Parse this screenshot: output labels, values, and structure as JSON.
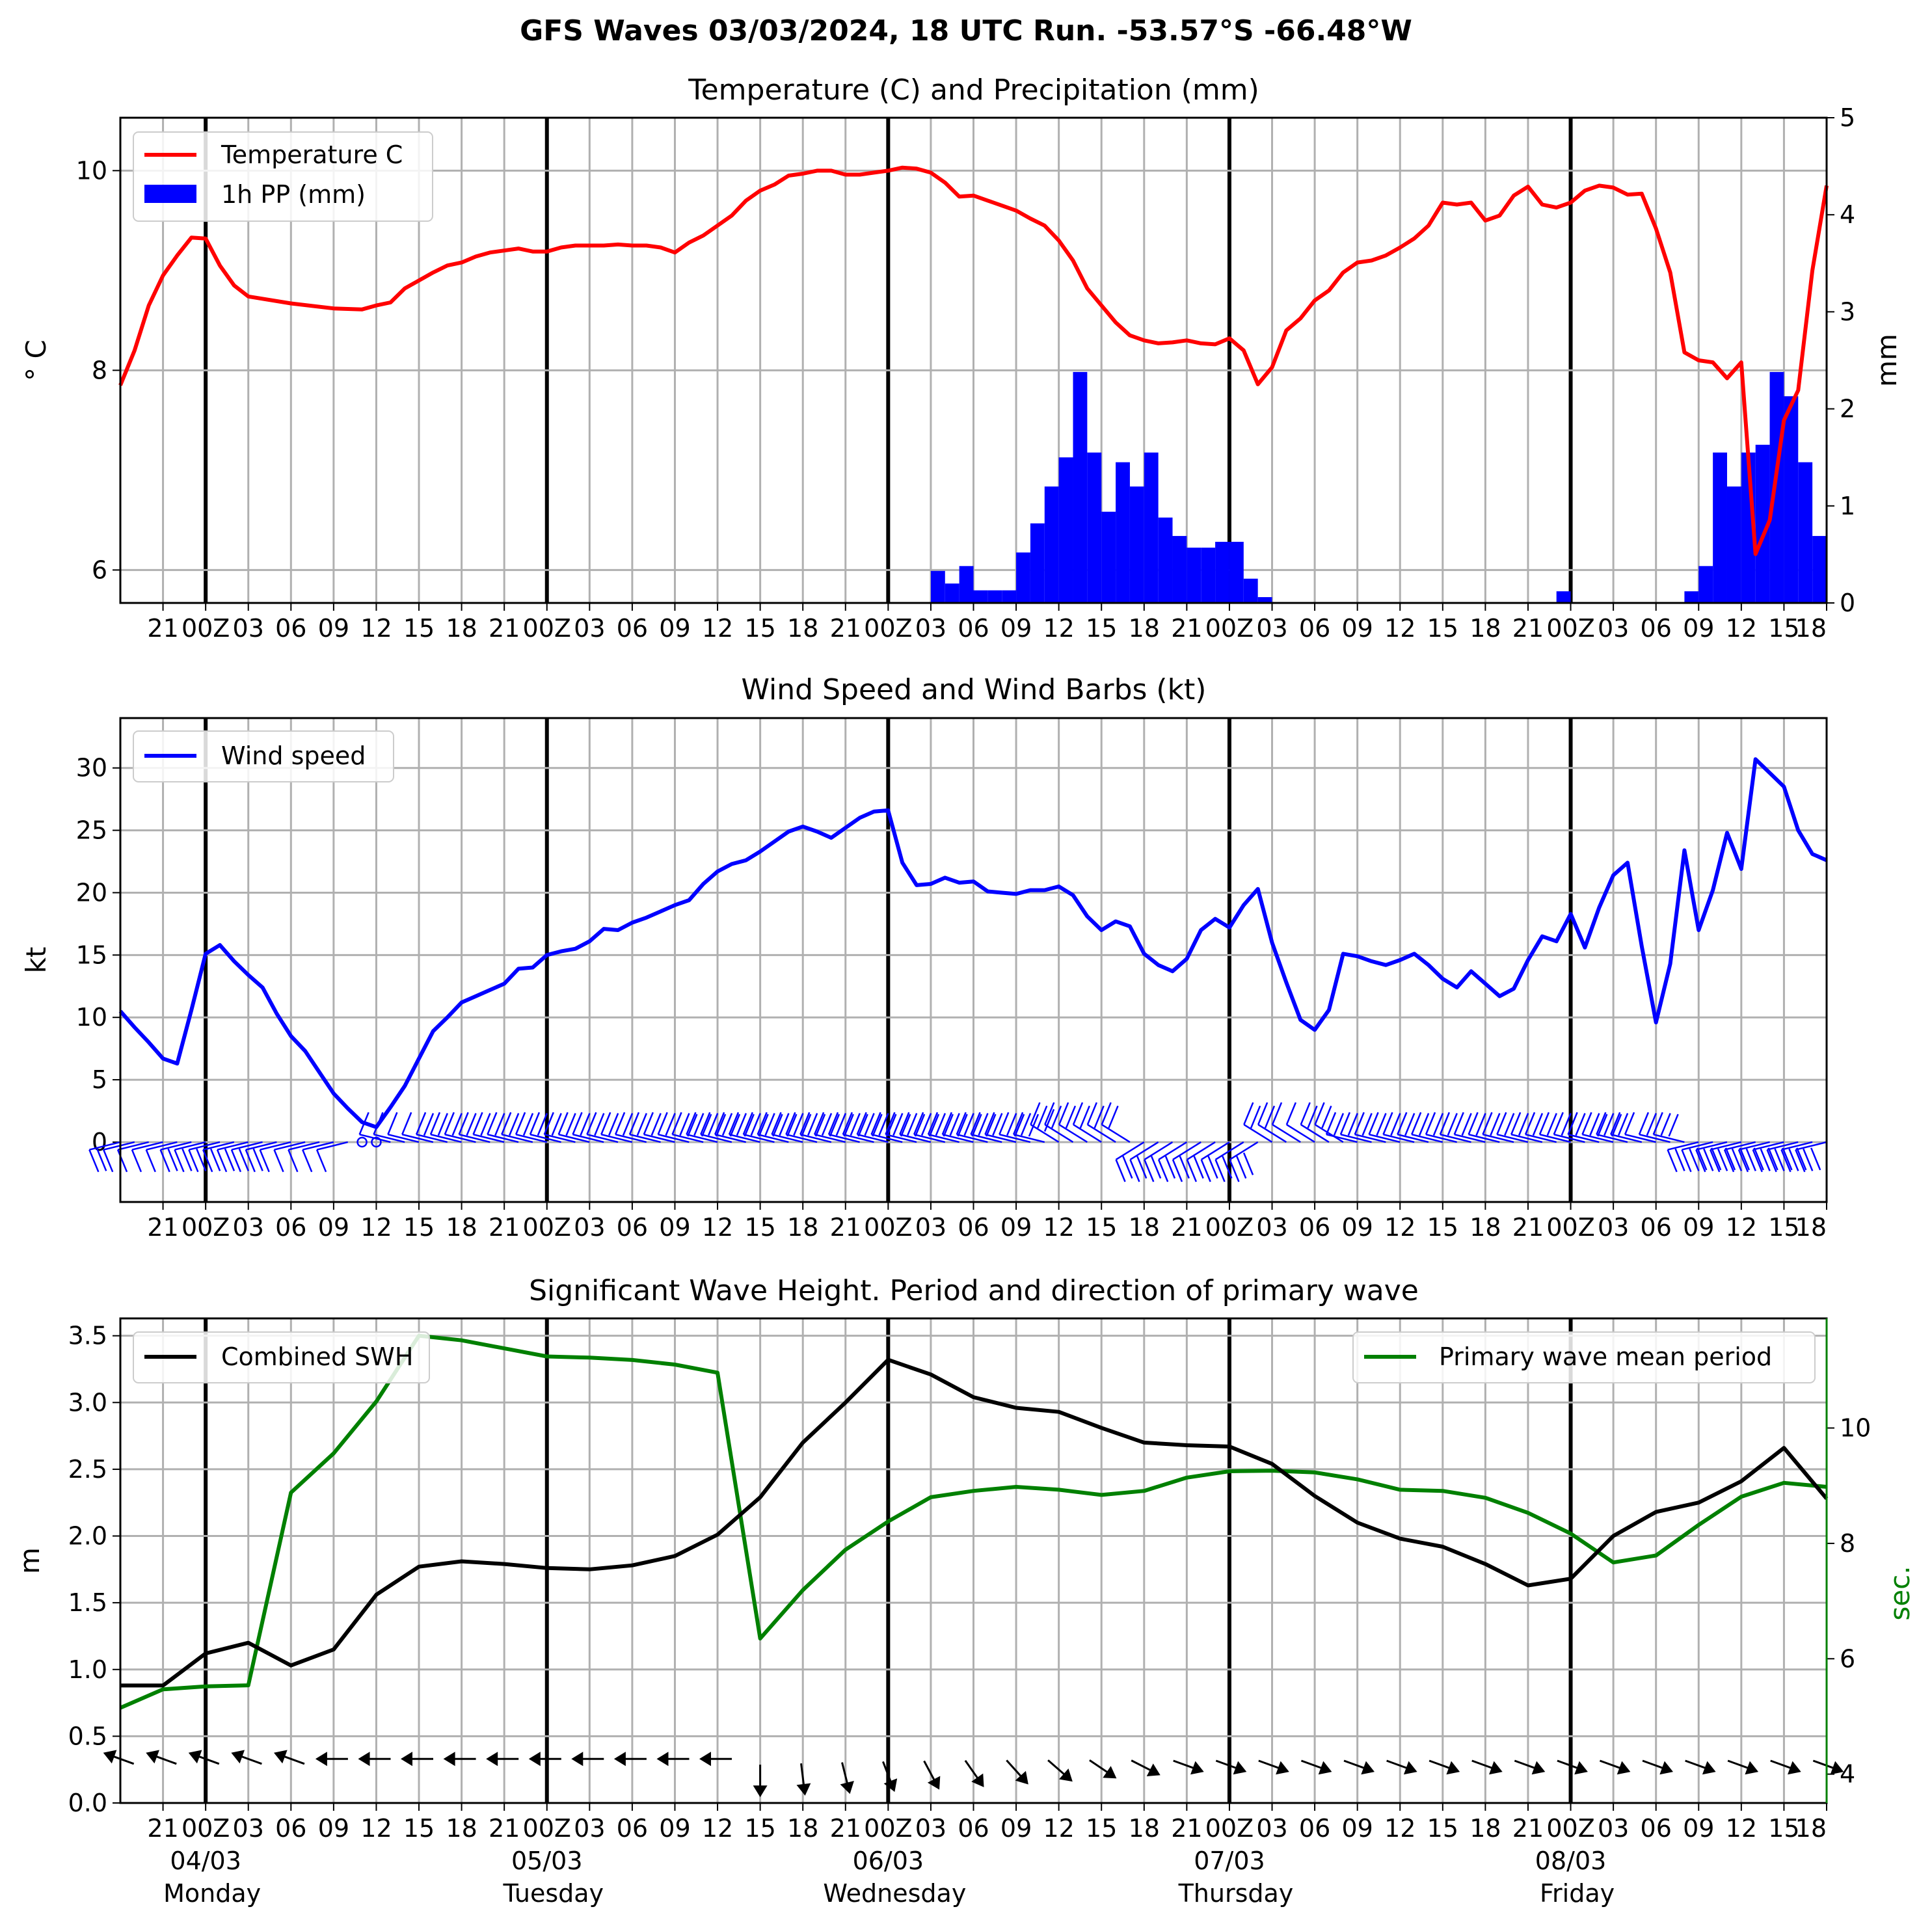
{
  "chart_data": [
    {
      "type": "line",
      "suptitle": "GFS Waves 03/03/2024, 18 UTC Run. -53.57°S -66.48°W",
      "title": "Temperature (C) and Precipitation (mm)",
      "ylabel": "$^\\circ$C",
      "ylabel_display": "° C",
      "y2label": "mm",
      "ylim": [
        5.67,
        10.53
      ],
      "y2lim": [
        0,
        5
      ],
      "yticks": [
        6,
        8,
        10
      ],
      "y2ticks": [
        0,
        1,
        2,
        3,
        4,
        5
      ],
      "xlim_hours": [
        0,
        120
      ],
      "xtick_labels": [
        "21",
        "00Z",
        "03",
        "06",
        "09",
        "12",
        "15",
        "18",
        "21",
        "00Z",
        "03",
        "06",
        "09",
        "12",
        "15",
        "18",
        "21",
        "00Z",
        "03",
        "06",
        "09",
        "12",
        "15",
        "18",
        "21",
        "00Z",
        "03",
        "06",
        "09",
        "12",
        "15",
        "18",
        "21",
        "00Z",
        "03",
        "06",
        "09",
        "12",
        "15",
        "18"
      ],
      "grid": true,
      "legend_position": "upper left",
      "series": [
        {
          "name": "Temperature C",
          "kind": "line",
          "color": "#ff0000",
          "x": [
            0,
            1,
            2,
            3,
            4,
            5,
            6,
            7,
            8,
            9,
            12,
            15,
            17,
            18,
            19,
            20,
            21,
            22,
            23,
            24,
            25,
            26,
            27,
            28,
            29,
            30,
            31,
            32,
            33,
            34,
            35,
            36,
            37,
            38,
            39,
            40,
            41,
            42,
            43,
            44,
            45,
            46,
            47,
            48,
            49,
            50,
            51,
            52,
            53,
            54,
            55,
            56,
            57,
            58,
            59,
            60,
            61,
            62,
            63,
            64,
            65,
            66,
            67,
            68,
            69,
            70,
            71,
            72,
            73,
            74,
            75,
            76,
            77,
            78,
            79,
            80,
            81,
            82,
            83,
            84,
            85,
            86,
            87,
            88,
            89,
            90,
            91,
            92,
            93,
            94,
            95,
            96,
            97,
            98,
            99,
            100,
            101,
            102,
            103,
            104,
            105,
            106,
            107,
            108,
            109,
            110,
            111,
            112,
            113,
            114,
            115,
            116,
            117,
            118,
            119,
            120
          ],
          "values": [
            7.85,
            8.2,
            8.65,
            8.95,
            9.15,
            9.33,
            9.32,
            9.05,
            8.85,
            8.74,
            8.67,
            8.62,
            8.61,
            8.65,
            8.68,
            8.82,
            8.9,
            8.98,
            9.05,
            9.08,
            9.14,
            9.18,
            9.2,
            9.22,
            9.19,
            9.19,
            9.23,
            9.25,
            9.25,
            9.25,
            9.26,
            9.25,
            9.25,
            9.23,
            9.18,
            9.28,
            9.35,
            9.45,
            9.55,
            9.7,
            9.8,
            9.86,
            9.95,
            9.97,
            10.0,
            10.0,
            9.96,
            9.96,
            9.98,
            10.0,
            10.03,
            10.02,
            9.98,
            9.88,
            9.74,
            9.75,
            9.7,
            9.65,
            9.6,
            9.52,
            9.45,
            9.3,
            9.1,
            8.82,
            8.65,
            8.48,
            8.35,
            8.3,
            8.27,
            8.28,
            8.3,
            8.27,
            8.26,
            8.32,
            8.2,
            7.86,
            8.03,
            8.4,
            8.52,
            8.7,
            8.8,
            8.98,
            9.08,
            9.1,
            9.15,
            9.23,
            9.32,
            9.45,
            9.68,
            9.66,
            9.68,
            9.5,
            9.55,
            9.75,
            9.84,
            9.66,
            9.63,
            9.68,
            9.8,
            9.85,
            9.83,
            9.76,
            9.77,
            9.42,
            8.98,
            8.18,
            8.1,
            8.08,
            7.92,
            8.08,
            6.16,
            6.5,
            7.5,
            7.8,
            9.0,
            9.85
          ]
        },
        {
          "name": "1h PP (mm)",
          "kind": "bar",
          "color": "#0000ff",
          "x": [
            58,
            59,
            60,
            61,
            62,
            63,
            64,
            65,
            66,
            67,
            68,
            69,
            70,
            71,
            72,
            73,
            74,
            75,
            76,
            77,
            78,
            79,
            80,
            81,
            102,
            111,
            112,
            113,
            114,
            115,
            116,
            117,
            118,
            119,
            120,
            121,
            122,
            123,
            124
          ],
          "values": [
            0.33,
            0.2,
            0.38,
            0.13,
            0.13,
            0.13,
            0.52,
            0.82,
            1.2,
            1.5,
            2.38,
            1.55,
            0.94,
            1.45,
            1.2,
            1.55,
            0.88,
            0.69,
            0.57,
            0.57,
            0.63,
            0.63,
            0.25,
            0.06,
            0.12,
            0.12,
            0.38,
            1.55,
            1.2,
            1.55,
            1.63,
            2.38,
            2.13,
            1.45,
            0.69,
            0.12,
            0,
            0,
            0
          ]
        }
      ]
    },
    {
      "type": "line",
      "title": "Wind Speed and Wind Barbs (kt)",
      "ylabel": "kt",
      "ylim": [
        -4.8,
        34
      ],
      "yticks": [
        0,
        5,
        10,
        15,
        20,
        25,
        30
      ],
      "xlim_hours": [
        0,
        120
      ],
      "xtick_labels": [
        "21",
        "00Z",
        "03",
        "06",
        "09",
        "12",
        "15",
        "18",
        "21",
        "00Z",
        "03",
        "06",
        "09",
        "12",
        "15",
        "18",
        "21",
        "00Z",
        "03",
        "06",
        "09",
        "12",
        "15",
        "18",
        "21",
        "00Z",
        "03",
        "06",
        "09",
        "12",
        "15",
        "18",
        "21",
        "00Z",
        "03",
        "06",
        "09",
        "12",
        "15",
        "18"
      ],
      "grid": true,
      "legend_position": "upper left",
      "series": [
        {
          "name": "Wind speed",
          "kind": "line",
          "color": "#0000ff",
          "x": [
            0,
            1,
            2,
            3,
            4,
            5,
            6,
            7,
            8,
            9,
            10,
            11,
            12,
            13,
            14,
            15,
            16,
            17,
            18,
            19,
            20,
            21,
            22,
            23,
            24,
            25,
            26,
            27,
            28,
            29,
            30,
            31,
            32,
            33,
            34,
            35,
            36,
            37,
            38,
            39,
            40,
            41,
            42,
            43,
            44,
            45,
            46,
            47,
            48,
            49,
            50,
            51,
            52,
            53,
            54,
            55,
            56,
            57,
            58,
            59,
            60,
            61,
            62,
            63,
            64,
            65,
            66,
            67,
            68,
            69,
            70,
            71,
            72,
            73,
            74,
            75,
            76,
            77,
            78,
            79,
            80,
            81,
            82,
            83,
            84,
            85,
            86,
            87,
            88,
            89,
            90,
            91,
            92,
            93,
            94,
            95,
            96,
            97,
            98,
            99,
            100,
            101,
            102,
            103,
            104,
            105,
            106,
            107,
            108,
            109,
            110,
            111,
            112,
            113,
            114,
            115,
            116,
            117,
            118,
            119,
            120
          ],
          "values": [
            10.5,
            9.2,
            8.0,
            6.7,
            6.3,
            10.6,
            15.1,
            15.8,
            14.5,
            13.4,
            12.4,
            10.3,
            8.5,
            7.3,
            5.6,
            3.9,
            2.7,
            1.6,
            1.2,
            2.8,
            4.5,
            6.7,
            8.9,
            10.0,
            11.2,
            11.7,
            12.2,
            12.7,
            13.9,
            14.0,
            15.0,
            15.3,
            15.5,
            16.1,
            17.1,
            17.0,
            17.6,
            18.0,
            18.5,
            19.0,
            19.4,
            20.7,
            21.7,
            22.3,
            22.6,
            23.3,
            24.1,
            24.9,
            25.3,
            24.9,
            24.4,
            25.2,
            26.0,
            26.5,
            26.6,
            22.4,
            20.6,
            20.7,
            21.2,
            20.8,
            20.9,
            20.1,
            20.0,
            19.9,
            20.2,
            20.2,
            20.5,
            19.8,
            18.1,
            17.0,
            17.7,
            17.3,
            15.1,
            14.2,
            13.7,
            14.7,
            17.0,
            17.9,
            17.2,
            19.0,
            20.3,
            16.0,
            12.8,
            9.8,
            9.0,
            10.6,
            15.1,
            14.9,
            14.5,
            14.2,
            14.6,
            15.1,
            14.2,
            13.1,
            12.4,
            13.7,
            12.7,
            11.7,
            12.3,
            14.6,
            16.5,
            16.1,
            18.3,
            15.6,
            18.8,
            21.4,
            22.4,
            15.7,
            9.6,
            14.3,
            23.4,
            17.0,
            20.2,
            24.8,
            21.9,
            30.7,
            29.6,
            28.5,
            25.0,
            23.1,
            22.6
          ]
        }
      ],
      "barbs": {
        "hours": [
          0,
          1,
          2,
          3,
          4,
          5,
          6,
          7,
          8,
          9,
          10,
          11,
          12,
          13,
          14,
          15,
          16,
          17,
          18,
          19,
          20,
          21,
          22,
          23,
          24,
          25,
          26,
          27,
          28,
          29,
          30,
          31,
          32,
          33,
          34,
          35,
          36,
          37,
          38,
          39,
          40,
          41,
          42,
          43,
          44,
          45,
          46,
          47,
          48,
          49,
          50,
          51,
          52,
          53,
          54,
          55,
          56,
          57,
          58,
          59,
          60,
          61,
          62,
          63,
          64,
          65,
          66,
          67,
          68,
          69,
          70,
          71,
          72,
          73,
          74,
          75,
          76,
          77,
          78,
          79,
          80,
          81,
          82,
          83,
          84,
          85,
          86,
          87,
          88,
          89,
          90,
          91,
          92,
          93,
          94,
          95,
          96,
          97,
          98,
          99,
          100,
          101,
          102,
          103,
          104,
          105,
          106,
          107,
          108,
          109,
          110,
          111,
          112,
          113,
          114,
          115,
          116,
          117,
          118,
          119,
          120
        ],
        "color": "#0000ff",
        "note_first_day": "southward-hanging barbs",
        "note_mid": "northward-rising barbs"
      }
    },
    {
      "type": "line",
      "title": "Significant Wave Height. Period and direction of primary wave",
      "ylabel": "m",
      "y2label": "sec.",
      "ylim": [
        0,
        3.63
      ],
      "y2lim": [
        3.5,
        11.9
      ],
      "yticks": [
        0.0,
        0.5,
        1.0,
        1.5,
        2.0,
        2.5,
        3.0,
        3.5
      ],
      "y2ticks": [
        4,
        6,
        8,
        10
      ],
      "xlim_hours": [
        0,
        120
      ],
      "xtick_labels": [
        "21",
        "00Z",
        "03",
        "06",
        "09",
        "12",
        "15",
        "18",
        "21",
        "00Z",
        "03",
        "06",
        "09",
        "12",
        "15",
        "18",
        "21",
        "00Z",
        "03",
        "06",
        "09",
        "12",
        "15",
        "18",
        "21",
        "00Z",
        "03",
        "06",
        "09",
        "12",
        "15",
        "18",
        "21",
        "00Z",
        "03",
        "06",
        "09",
        "12",
        "15",
        "18"
      ],
      "date_labels": [
        {
          "date": "04/03",
          "day": "Monday"
        },
        {
          "date": "05/03",
          "day": "Tuesday"
        },
        {
          "date": "06/03",
          "day": "Wednesday"
        },
        {
          "date": "07/03",
          "day": "Thursday"
        },
        {
          "date": "08/03",
          "day": "Friday"
        }
      ],
      "grid": true,
      "series": [
        {
          "name": "Combined SWH",
          "kind": "line",
          "axis": "left",
          "color": "#000000",
          "x": [
            0,
            3,
            6,
            9,
            12,
            15,
            18,
            21,
            24,
            27,
            30,
            33,
            36,
            39,
            42,
            45,
            48,
            51,
            54,
            57,
            60,
            63,
            66,
            69,
            72,
            75,
            78,
            81,
            84,
            87,
            90,
            93,
            96,
            99,
            102,
            105,
            108,
            111,
            114,
            117,
            120
          ],
          "values": [
            0.88,
            0.88,
            1.12,
            1.2,
            1.03,
            1.15,
            1.56,
            1.77,
            1.81,
            1.79,
            1.76,
            1.75,
            1.78,
            1.85,
            2.01,
            2.29,
            2.7,
            3.0,
            3.32,
            3.21,
            3.04,
            2.96,
            2.93,
            2.81,
            2.7,
            2.68,
            2.67,
            2.54,
            2.3,
            2.1,
            1.98,
            1.92,
            1.79,
            1.63,
            1.68,
            2.0,
            2.18,
            2.25,
            2.41,
            2.66,
            2.28
          ]
        },
        {
          "name": "Primary wave mean period",
          "kind": "line",
          "axis": "right",
          "color": "#008000",
          "x": [
            0,
            3,
            6,
            9,
            12,
            15,
            18,
            21,
            24,
            27,
            30,
            33,
            36,
            39,
            42,
            45,
            48,
            51,
            54,
            57,
            60,
            63,
            66,
            69,
            72,
            75,
            78,
            81,
            84,
            87,
            90,
            93,
            96,
            99,
            102,
            105,
            108,
            111,
            114,
            117,
            120
          ],
          "values": [
            5.15,
            5.47,
            5.52,
            5.54,
            8.88,
            9.56,
            10.46,
            11.6,
            11.52,
            11.38,
            11.24,
            11.22,
            11.18,
            11.1,
            10.96,
            6.35,
            7.19,
            7.89,
            8.38,
            8.8,
            8.91,
            8.98,
            8.93,
            8.84,
            8.91,
            9.14,
            9.25,
            9.26,
            9.23,
            9.11,
            8.93,
            8.91,
            8.79,
            8.53,
            8.17,
            7.67,
            7.79,
            8.32,
            8.81,
            9.05,
            8.98
          ]
        }
      ],
      "direction_arrows": {
        "hours": [
          0,
          3,
          6,
          9,
          12,
          15,
          18,
          21,
          24,
          27,
          30,
          33,
          36,
          39,
          42,
          45,
          48,
          51,
          54,
          57,
          60,
          63,
          66,
          69,
          72,
          75,
          78,
          81,
          84,
          87,
          90,
          93,
          96,
          99,
          102,
          105,
          108,
          111,
          114,
          117,
          120
        ],
        "color": "#000000"
      }
    }
  ]
}
